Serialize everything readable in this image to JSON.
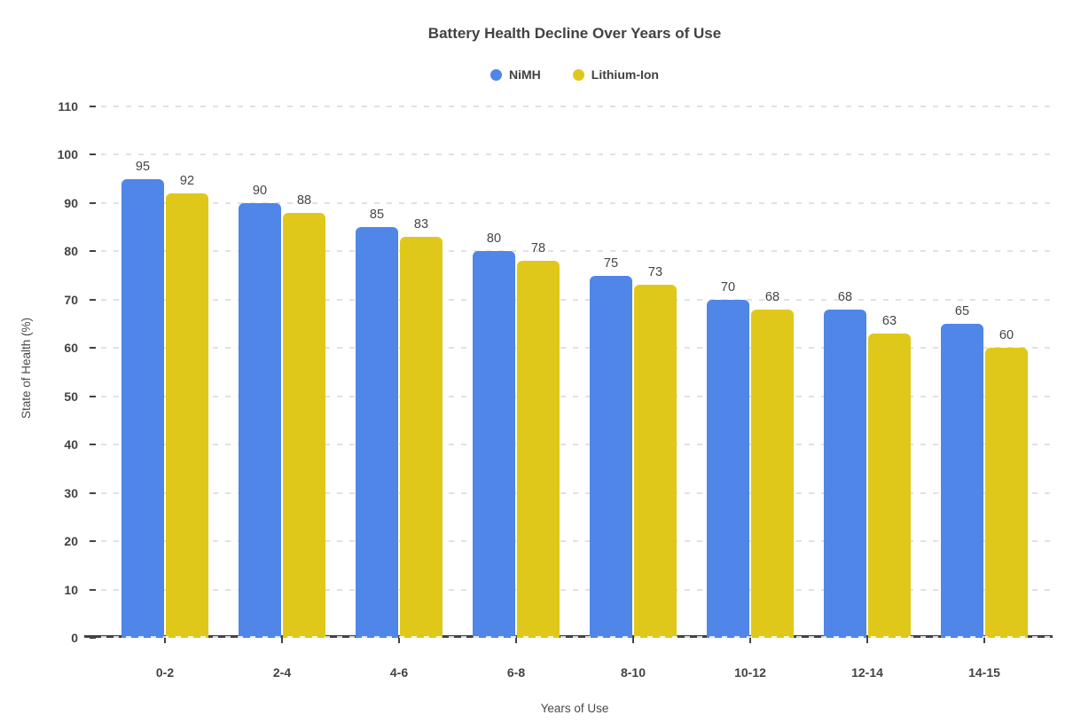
{
  "chart_data": {
    "type": "bar",
    "title": "Battery Health Decline Over Years of Use",
    "xlabel": "Years of Use",
    "ylabel": "State of Health (%)",
    "categories": [
      "0-2",
      "2-4",
      "4-6",
      "6-8",
      "8-10",
      "10-12",
      "12-14",
      "14-15"
    ],
    "series": [
      {
        "name": "NiMH",
        "color": "#4f86e7",
        "values": [
          95,
          90,
          85,
          80,
          75,
          70,
          68,
          65
        ]
      },
      {
        "name": "Lithium-Ion",
        "color": "#dfc81a",
        "values": [
          92,
          88,
          83,
          78,
          73,
          68,
          63,
          60
        ]
      }
    ],
    "ylim": [
      0,
      110
    ],
    "ytick_step": 10,
    "yticks": [
      0,
      10,
      20,
      30,
      40,
      50,
      60,
      70,
      80,
      90,
      100,
      110
    ],
    "grid": "horizontal-dashed",
    "legend_position": "top",
    "value_labels": "above-bars"
  },
  "theme": {
    "text_color": "#424242",
    "grid_color": "#e1e1e1",
    "axis_color": "#424242",
    "background": "#ffffff"
  }
}
